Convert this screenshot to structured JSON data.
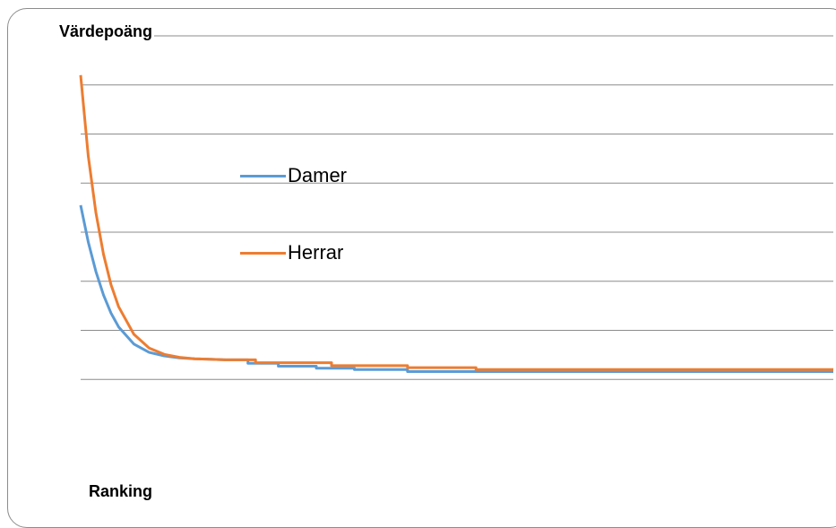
{
  "chart_data": {
    "type": "line",
    "title": "",
    "ylabel": "Värdepoäng",
    "xlabel": "Ranking",
    "ylim": [
      0,
      8
    ],
    "xlim": [
      1,
      100
    ],
    "grid": true,
    "legend_position": "center-left",
    "series": [
      {
        "name": "Damer",
        "color": "#5b9bd5",
        "x": [
          1,
          2,
          3,
          4,
          5,
          6,
          8,
          10,
          12,
          14,
          16,
          18,
          20,
          22,
          23,
          23,
          27,
          27,
          32,
          32,
          37,
          37,
          44,
          44,
          100
        ],
        "y": [
          4.55,
          3.8,
          3.2,
          2.72,
          2.35,
          2.07,
          1.72,
          1.55,
          1.48,
          1.44,
          1.42,
          1.41,
          1.4,
          1.4,
          1.4,
          1.33,
          1.33,
          1.27,
          1.27,
          1.23,
          1.23,
          1.2,
          1.2,
          1.16,
          1.16
        ]
      },
      {
        "name": "Herrar",
        "color": "#ed7d31",
        "x": [
          1,
          2,
          3,
          4,
          5,
          6,
          8,
          10,
          12,
          14,
          16,
          18,
          20,
          22,
          24,
          24,
          34,
          34,
          44,
          44,
          53,
          53,
          100
        ],
        "y": [
          7.2,
          5.55,
          4.4,
          3.55,
          2.93,
          2.48,
          1.92,
          1.64,
          1.51,
          1.45,
          1.42,
          1.41,
          1.4,
          1.4,
          1.4,
          1.34,
          1.34,
          1.28,
          1.28,
          1.24,
          1.24,
          1.2,
          1.2
        ]
      }
    ]
  }
}
